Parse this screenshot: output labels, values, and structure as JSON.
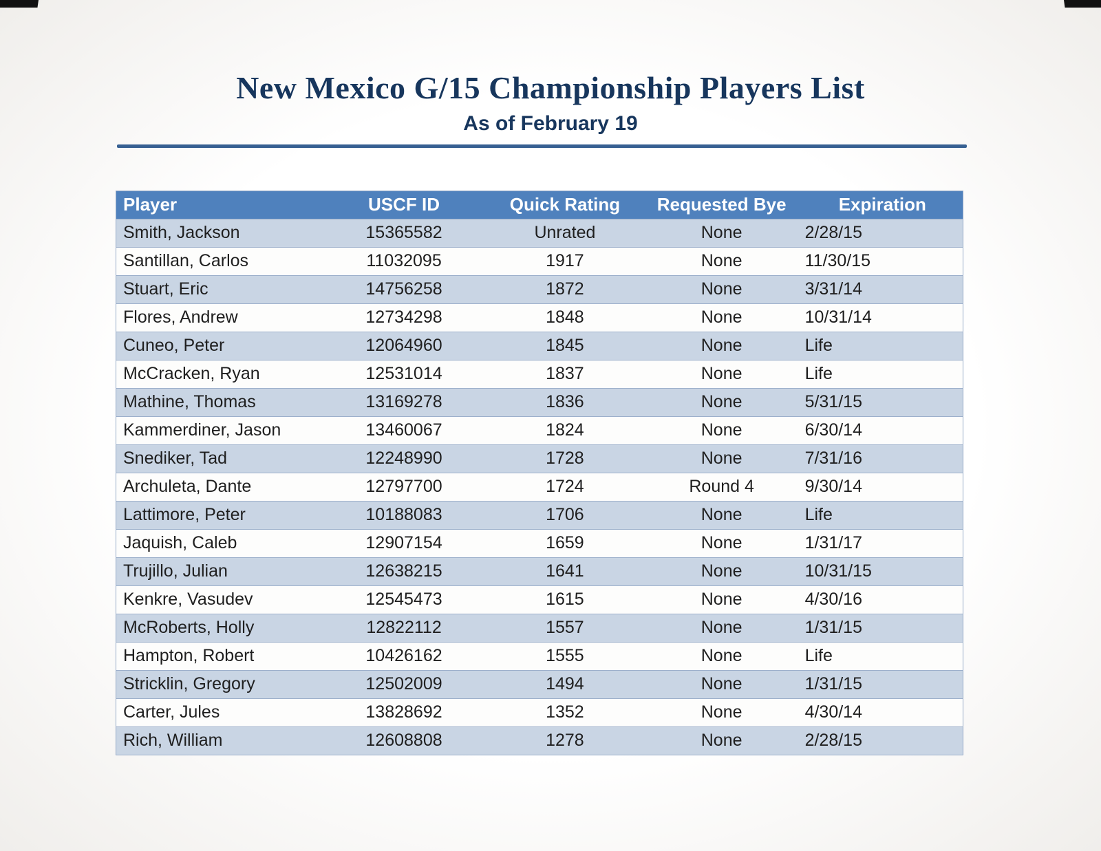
{
  "page": {
    "title": "New Mexico G/15 Championship Players List",
    "subtitle": "As of February 19"
  },
  "colors": {
    "title_text": "#17365d",
    "divider": "#376092",
    "header_bg": "#4f81bd",
    "band_row_bg": "#c9d5e4"
  },
  "table": {
    "columns": [
      "Player",
      "USCF ID",
      "Quick Rating",
      "Requested Bye",
      "Expiration"
    ],
    "rows": [
      [
        "Smith, Jackson",
        "15365582",
        "Unrated",
        "None",
        "2/28/15"
      ],
      [
        "Santillan, Carlos",
        "11032095",
        "1917",
        "None",
        "11/30/15"
      ],
      [
        "Stuart, Eric",
        "14756258",
        "1872",
        "None",
        "3/31/14"
      ],
      [
        "Flores, Andrew",
        "12734298",
        "1848",
        "None",
        "10/31/14"
      ],
      [
        "Cuneo, Peter",
        "12064960",
        "1845",
        "None",
        "Life"
      ],
      [
        "McCracken, Ryan",
        "12531014",
        "1837",
        "None",
        "Life"
      ],
      [
        "Mathine, Thomas",
        "13169278",
        "1836",
        "None",
        "5/31/15"
      ],
      [
        "Kammerdiner, Jason",
        "13460067",
        "1824",
        "None",
        "6/30/14"
      ],
      [
        "Snediker, Tad",
        "12248990",
        "1728",
        "None",
        "7/31/16"
      ],
      [
        "Archuleta, Dante",
        "12797700",
        "1724",
        "Round 4",
        "9/30/14"
      ],
      [
        "Lattimore, Peter",
        "10188083",
        "1706",
        "None",
        "Life"
      ],
      [
        "Jaquish, Caleb",
        "12907154",
        "1659",
        "None",
        "1/31/17"
      ],
      [
        "Trujillo, Julian",
        "12638215",
        "1641",
        "None",
        "10/31/15"
      ],
      [
        "Kenkre, Vasudev",
        "12545473",
        "1615",
        "None",
        "4/30/16"
      ],
      [
        "McRoberts, Holly",
        "12822112",
        "1557",
        "None",
        "1/31/15"
      ],
      [
        "Hampton, Robert",
        "10426162",
        "1555",
        "None",
        "Life"
      ],
      [
        "Stricklin, Gregory",
        "12502009",
        "1494",
        "None",
        "1/31/15"
      ],
      [
        "Carter, Jules",
        "13828692",
        "1352",
        "None",
        "4/30/14"
      ],
      [
        "Rich, William",
        "12608808",
        "1278",
        "None",
        "2/28/15"
      ]
    ]
  }
}
